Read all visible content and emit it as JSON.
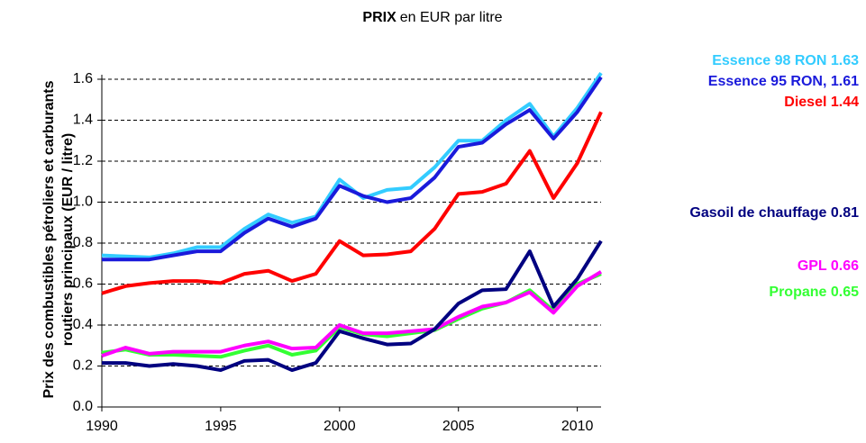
{
  "chart_data": {
    "type": "line",
    "title_bold": "PRIX",
    "title": "en EUR par litre",
    "y_label": "Prix des combustibles pétroliers et carburants routiers principaux  (EUR / litre)",
    "x": [
      1990,
      1991,
      1992,
      1993,
      1994,
      1995,
      1996,
      1997,
      1998,
      1999,
      2000,
      2001,
      2002,
      2003,
      2004,
      2005,
      2006,
      2007,
      2008,
      2009,
      2010,
      2011
    ],
    "xlim": [
      1990,
      2011
    ],
    "xticks": [
      1990,
      1995,
      2000,
      2005,
      2010
    ],
    "ylim": [
      0,
      1.6
    ],
    "yticks": [
      {
        "value": 0,
        "label": "0.0"
      },
      0.2,
      0.4,
      0.6,
      0.8,
      {
        "value": 1,
        "label": "1.0"
      },
      1.2,
      1.4,
      1.6
    ],
    "grid": true,
    "series": [
      {
        "name": "Propane 0.65",
        "color": "#33ff33",
        "values": [
          0.265,
          0.28,
          0.255,
          0.255,
          0.25,
          0.245,
          0.275,
          0.3,
          0.255,
          0.275,
          0.39,
          0.355,
          0.345,
          0.36,
          0.375,
          0.43,
          0.48,
          0.51,
          0.57,
          0.47,
          0.6,
          0.65
        ]
      },
      {
        "name": "GPL 0.66",
        "color": "#ff00ff",
        "values": [
          0.25,
          0.29,
          0.26,
          0.27,
          0.27,
          0.27,
          0.3,
          0.32,
          0.285,
          0.29,
          0.4,
          0.36,
          0.36,
          0.37,
          0.38,
          0.44,
          0.49,
          0.51,
          0.56,
          0.46,
          0.59,
          0.66
        ]
      },
      {
        "name": "Gasoil de chauffage 0.81",
        "color": "#000080",
        "values": [
          0.215,
          0.215,
          0.2,
          0.21,
          0.2,
          0.18,
          0.225,
          0.23,
          0.18,
          0.215,
          0.37,
          0.335,
          0.305,
          0.31,
          0.38,
          0.505,
          0.57,
          0.575,
          0.76,
          0.49,
          0.625,
          0.81
        ]
      },
      {
        "name": "Diesel 1.44",
        "color": "#ff0000",
        "values": [
          0.555,
          0.59,
          0.605,
          0.615,
          0.615,
          0.605,
          0.65,
          0.665,
          0.615,
          0.65,
          0.81,
          0.74,
          0.745,
          0.76,
          0.87,
          1.04,
          1.05,
          1.09,
          1.25,
          1.02,
          1.19,
          1.44
        ]
      },
      {
        "name": "Essence 98 RON 1.63",
        "color": "#33ccff",
        "values": [
          0.74,
          0.735,
          0.73,
          0.75,
          0.78,
          0.78,
          0.87,
          0.94,
          0.9,
          0.93,
          1.11,
          1.02,
          1.06,
          1.07,
          1.17,
          1.3,
          1.3,
          1.4,
          1.48,
          1.32,
          1.46,
          1.63
        ]
      },
      {
        "name": "Essence 95 RON, 1.61",
        "color": "#1a1adb",
        "values": [
          0.72,
          0.72,
          0.72,
          0.74,
          0.76,
          0.76,
          0.85,
          0.92,
          0.88,
          0.92,
          1.08,
          1.03,
          1.0,
          1.02,
          1.12,
          1.27,
          1.29,
          1.38,
          1.45,
          1.31,
          1.44,
          1.61
        ]
      }
    ]
  }
}
